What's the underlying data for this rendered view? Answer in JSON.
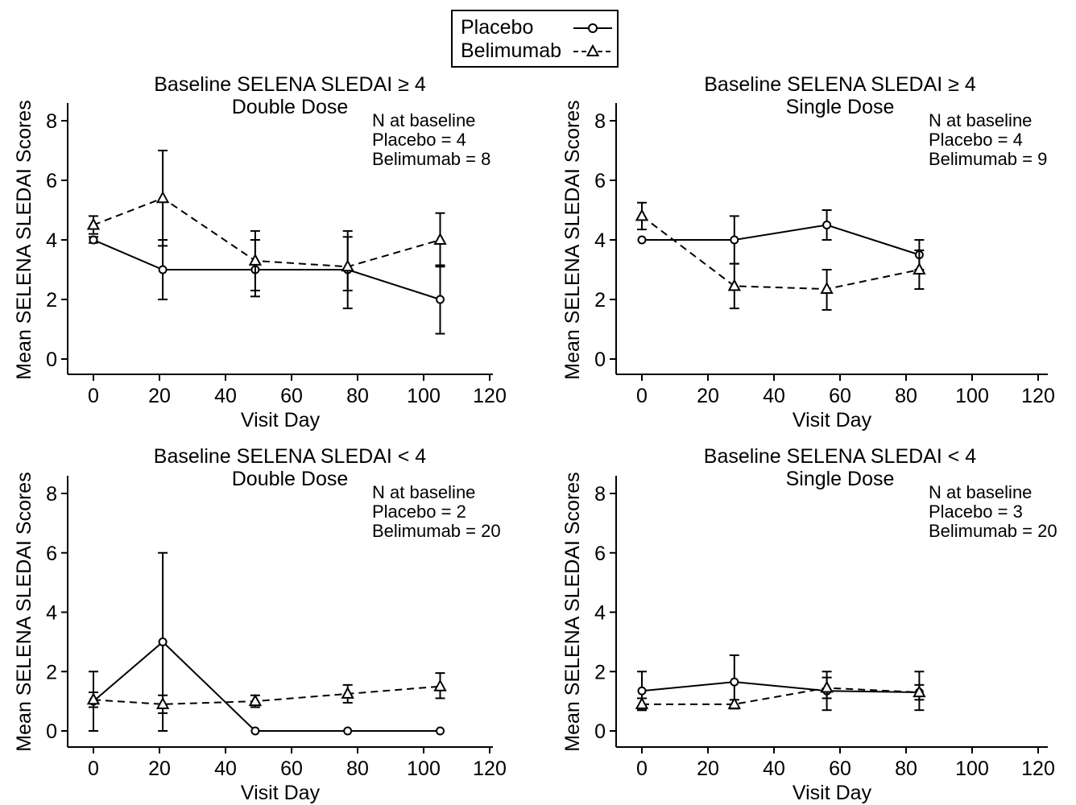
{
  "legend": {
    "entries": [
      {
        "label": "Placebo",
        "marker": "circle",
        "line": "solid"
      },
      {
        "label": "Belimumab",
        "marker": "triangle",
        "line": "dashed"
      }
    ]
  },
  "chart_data": [
    {
      "type": "line",
      "title": "Baseline SELENA SLEDAI ≥ 4",
      "subtitle": "Double Dose",
      "xlabel": "Visit Day",
      "ylabel": "Mean SELENA SLEDAI Scores",
      "xlim": [
        0,
        120
      ],
      "ylim": [
        0,
        8
      ],
      "xticks": [
        0,
        20,
        40,
        60,
        80,
        100,
        120
      ],
      "yticks": [
        0,
        2,
        4,
        6,
        8
      ],
      "annotation": [
        "N at baseline",
        "Placebo = 4",
        "Belimumab = 8"
      ],
      "series": [
        {
          "name": "Placebo",
          "x": [
            0,
            21,
            49,
            77,
            105
          ],
          "y": [
            4,
            3,
            3,
            3,
            2
          ],
          "err_low": [
            3.9,
            2,
            2.1,
            1.7,
            0.85
          ],
          "err_high": [
            4.1,
            4,
            4,
            4.1,
            3.15
          ]
        },
        {
          "name": "Belimumab",
          "x": [
            0,
            21,
            49,
            77,
            105
          ],
          "y": [
            4.5,
            5.4,
            3.3,
            3.1,
            4
          ],
          "err_low": [
            4.2,
            3.8,
            2.3,
            2.3,
            3.1
          ],
          "err_high": [
            4.8,
            7,
            4.3,
            4.3,
            4.9
          ]
        }
      ]
    },
    {
      "type": "line",
      "title": "Baseline SELENA SLEDAI ≥ 4",
      "subtitle": "Single Dose",
      "xlabel": "Visit Day",
      "ylabel": "Mean SELENA SLEDAI Scores",
      "xlim": [
        0,
        120
      ],
      "ylim": [
        0,
        8
      ],
      "xticks": [
        0,
        20,
        40,
        60,
        80,
        100,
        120
      ],
      "yticks": [
        0,
        2,
        4,
        6,
        8
      ],
      "annotation": [
        "N at baseline",
        "Placebo = 4",
        "Belimumab = 9"
      ],
      "series": [
        {
          "name": "Placebo",
          "x": [
            0,
            28,
            56,
            84
          ],
          "y": [
            4,
            4,
            4.5,
            3.5
          ],
          "err_low": [
            4,
            3.2,
            4,
            3
          ],
          "err_high": [
            4,
            4.8,
            5,
            4
          ]
        },
        {
          "name": "Belimumab",
          "x": [
            0,
            28,
            56,
            84
          ],
          "y": [
            4.8,
            2.45,
            2.35,
            3
          ],
          "err_low": [
            4.35,
            1.7,
            1.65,
            2.35
          ],
          "err_high": [
            5.25,
            3.2,
            3,
            3.65
          ]
        }
      ]
    },
    {
      "type": "line",
      "title": "Baseline SELENA SLEDAI < 4",
      "subtitle": "Double Dose",
      "xlabel": "Visit Day",
      "ylabel": "Mean SELENA SLEDAI Scores",
      "xlim": [
        0,
        120
      ],
      "ylim": [
        0,
        8
      ],
      "xticks": [
        0,
        20,
        40,
        60,
        80,
        100,
        120
      ],
      "yticks": [
        0,
        2,
        4,
        6,
        8
      ],
      "annotation": [
        "N at baseline",
        "Placebo = 2",
        "Belimumab = 20"
      ],
      "series": [
        {
          "name": "Placebo",
          "x": [
            0,
            21,
            49,
            77,
            105
          ],
          "y": [
            1,
            3,
            0,
            0,
            0
          ],
          "err_low": [
            0,
            0,
            0,
            0,
            0
          ],
          "err_high": [
            2,
            6,
            0,
            0,
            0
          ]
        },
        {
          "name": "Belimumab",
          "x": [
            0,
            21,
            49,
            77,
            105
          ],
          "y": [
            1.05,
            0.9,
            1,
            1.25,
            1.5
          ],
          "err_low": [
            0.8,
            0.6,
            0.8,
            0.95,
            1.1
          ],
          "err_high": [
            1.3,
            1.2,
            1.2,
            1.55,
            1.95
          ]
        }
      ]
    },
    {
      "type": "line",
      "title": "Baseline SELENA SLEDAI < 4",
      "subtitle": "Single Dose",
      "xlabel": "Visit Day",
      "ylabel": "Mean SELENA SLEDAI Scores",
      "xlim": [
        0,
        120
      ],
      "ylim": [
        0,
        8
      ],
      "xticks": [
        0,
        20,
        40,
        60,
        80,
        100,
        120
      ],
      "yticks": [
        0,
        2,
        4,
        6,
        8
      ],
      "annotation": [
        "N at baseline",
        "Placebo = 3",
        "Belimumab = 20"
      ],
      "series": [
        {
          "name": "Placebo",
          "x": [
            0,
            28,
            56,
            84
          ],
          "y": [
            1.35,
            1.65,
            1.35,
            1.3
          ],
          "err_low": [
            0.7,
            0.75,
            0.7,
            0.7
          ],
          "err_high": [
            2,
            2.55,
            2,
            2
          ]
        },
        {
          "name": "Belimumab",
          "x": [
            0,
            28,
            56,
            84
          ],
          "y": [
            0.9,
            0.9,
            1.45,
            1.3
          ],
          "err_low": [
            0.7,
            0.8,
            1.1,
            1.05
          ],
          "err_high": [
            1.1,
            1.05,
            1.8,
            1.55
          ]
        }
      ]
    }
  ]
}
